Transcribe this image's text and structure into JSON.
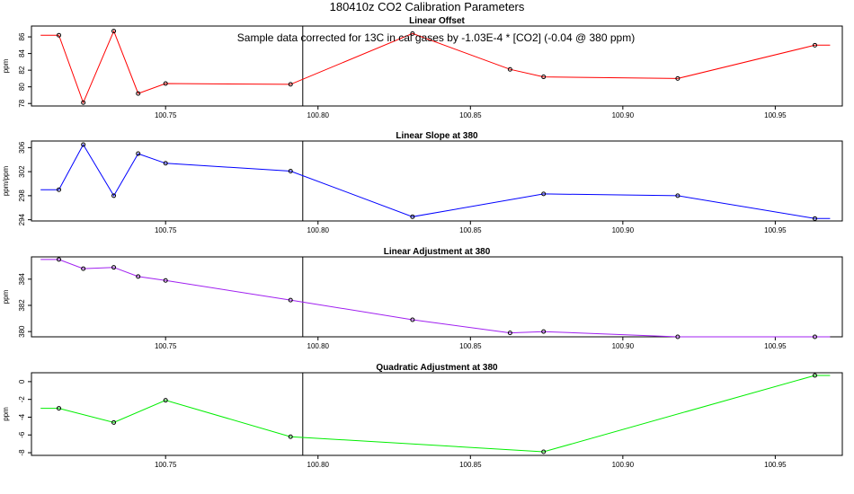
{
  "figure": {
    "title": "180410z   CO2 Calibration Parameters",
    "note": "Sample data corrected for 13C in cal gases by -1.03E-4 * [CO2] (-0.04 @ 380 ppm)",
    "marker_x": 100.795,
    "x_ticks": [
      "100.75",
      "100.80",
      "100.85",
      "100.90",
      "100.95"
    ],
    "xlim": [
      100.706,
      100.972
    ]
  },
  "chart_data": [
    {
      "type": "line",
      "title": "Linear Offset",
      "ylabel": "ppm",
      "color": "#ff0000",
      "ylim": [
        77.7,
        87.3
      ],
      "y_ticks": [
        78,
        80,
        82,
        84,
        86
      ],
      "x": [
        100.715,
        100.723,
        100.733,
        100.741,
        100.75,
        100.791,
        100.831,
        100.863,
        100.874,
        100.918,
        100.963
      ],
      "y": [
        86.2,
        78.1,
        86.7,
        79.2,
        80.4,
        80.3,
        86.4,
        82.1,
        81.2,
        81.0,
        85.0
      ],
      "lead_in": [
        100.709,
        86.2
      ],
      "lead_out": [
        100.968,
        85.0
      ]
    },
    {
      "type": "line",
      "title": "Linear Slope at 380",
      "ylabel": "ppm/ppm",
      "color": "#0000ff",
      "ylim": [
        293.8,
        307.1
      ],
      "y_ticks": [
        294,
        298,
        302,
        306
      ],
      "x": [
        100.715,
        100.723,
        100.733,
        100.741,
        100.75,
        100.791,
        100.831,
        100.874,
        100.918,
        100.963
      ],
      "y": [
        299.0,
        306.5,
        298.0,
        305.0,
        303.4,
        302.1,
        294.5,
        298.3,
        298.0,
        294.2
      ],
      "lead_in": [
        100.709,
        299.0
      ],
      "lead_out": [
        100.968,
        294.2
      ]
    },
    {
      "type": "line",
      "title": "Linear Adjustment at 380",
      "ylabel": "ppm",
      "color": "#a020f0",
      "ylim": [
        379.6,
        385.7
      ],
      "y_ticks": [
        380,
        382,
        384
      ],
      "x": [
        100.715,
        100.723,
        100.733,
        100.741,
        100.75,
        100.791,
        100.831,
        100.863,
        100.874,
        100.918,
        100.963
      ],
      "y": [
        385.5,
        384.8,
        384.9,
        384.2,
        383.9,
        382.4,
        380.9,
        379.9,
        380.0,
        379.6,
        379.6
      ],
      "lead_in": [
        100.709,
        385.5
      ],
      "lead_out": [
        100.968,
        379.6
      ]
    },
    {
      "type": "line",
      "title": "Quadratic Adjustment at 380",
      "ylabel": "ppm",
      "color": "#00ee00",
      "ylim": [
        -8.3,
        1.0
      ],
      "y_ticks": [
        0,
        -2,
        -4,
        -6,
        -8
      ],
      "x": [
        100.715,
        100.733,
        100.75,
        100.791,
        100.874,
        100.963
      ],
      "y": [
        -3.0,
        -4.6,
        -2.1,
        -6.2,
        -7.9,
        0.7
      ],
      "lead_in": [
        100.709,
        -3.0
      ],
      "lead_out": [
        100.968,
        0.7
      ]
    }
  ]
}
